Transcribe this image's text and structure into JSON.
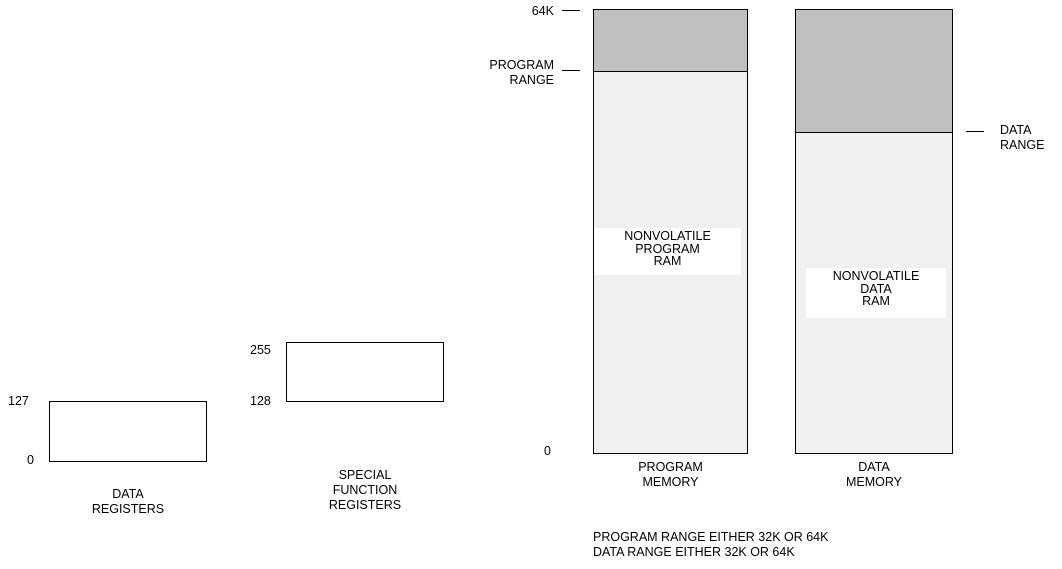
{
  "data_registers": {
    "top_label": "127",
    "bottom_label": "0",
    "caption": [
      "DATA",
      "REGISTERS"
    ]
  },
  "special_function_registers": {
    "top_label": "255",
    "bottom_label": "128",
    "caption": [
      "SPECIAL",
      "FUNCTION",
      "REGISTERS"
    ]
  },
  "program_memory": {
    "top_label": "64K",
    "range_label": [
      "PROGRAM",
      "RANGE"
    ],
    "bottom_label": "0",
    "inner_label": [
      "NONVOLATILE",
      "PROGRAM",
      "RAM"
    ],
    "caption": [
      "PROGRAM",
      "MEMORY"
    ],
    "upper_region_color": "#c0c0c0",
    "lower_region_color": "#f0f0f0"
  },
  "data_memory": {
    "range_label": [
      "DATA",
      "RANGE"
    ],
    "inner_label": [
      "NONVOLATILE",
      "DATA",
      "RAM"
    ],
    "caption": [
      "DATA",
      "MEMORY"
    ],
    "upper_region_color": "#c0c0c0",
    "lower_region_color": "#f0f0f0"
  },
  "notes": [
    "PROGRAM RANGE EITHER 32K OR 64K",
    "DATA RANGE EITHER 32K OR 64K"
  ]
}
